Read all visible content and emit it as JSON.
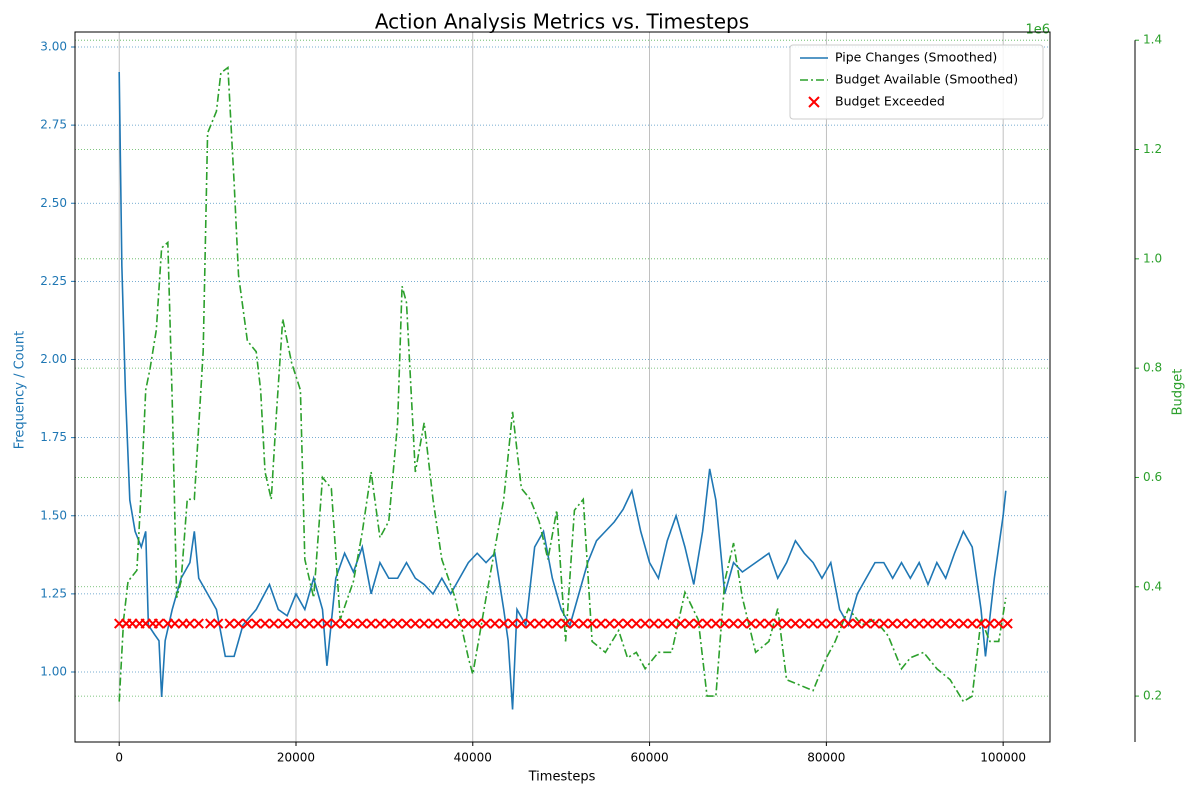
{
  "chart_data": {
    "type": "line",
    "title": "Action Analysis Metrics vs. Timesteps",
    "xlabel": "Timesteps",
    "ylabel": "Frequency / Count",
    "y2label": "Budget",
    "y2_offset_label": "1e6",
    "xlim": [
      -5000,
      105300
    ],
    "xticks": [
      0,
      20000,
      40000,
      60000,
      80000,
      100000
    ],
    "ylim": [
      0.776,
      3.048
    ],
    "yticks": [
      {
        "value": 1,
        "label": "1.00"
      },
      {
        "value": 1.25,
        "label": "1.25"
      },
      {
        "value": 1.5,
        "label": "1.50"
      },
      {
        "value": 1.75,
        "label": "1.75"
      },
      {
        "value": 2,
        "label": "2.00"
      },
      {
        "value": 2.25,
        "label": "2.25"
      },
      {
        "value": 2.5,
        "label": "2.50"
      },
      {
        "value": 2.75,
        "label": "2.75"
      },
      {
        "value": 3,
        "label": "3.00"
      }
    ],
    "y2lim": [
      0.116,
      1.415
    ],
    "y2ticks": [
      0.2,
      0.4,
      0.6,
      0.8,
      {
        "value": 1,
        "label": "1.0"
      },
      1.2,
      1.4
    ],
    "grid": true,
    "legend": "upper right",
    "series": [
      {
        "name": "Pipe Changes (Smoothed)",
        "type": "line",
        "linestyle": "solid",
        "color": "#1f77b4",
        "x": [
          0,
          300,
          700,
          1200,
          1800,
          2500,
          3000,
          3300,
          4000,
          4500,
          4800,
          5200,
          6000,
          7000,
          8000,
          8500,
          9000,
          10000,
          11000,
          12000,
          13000,
          14000,
          15500,
          17000,
          18000,
          19000,
          20000,
          21000,
          22000,
          23000,
          23500,
          24500,
          25500,
          26500,
          27500,
          28500,
          29500,
          30500,
          31500,
          32500,
          33500,
          34500,
          35500,
          36500,
          37500,
          38500,
          39500,
          40500,
          41500,
          42500,
          43500,
          44000,
          44500,
          45000,
          46000,
          47000,
          48000,
          49000,
          50000,
          51000,
          52000,
          53000,
          54000,
          55000,
          56000,
          57000,
          58000,
          59000,
          60000,
          61000,
          62000,
          63000,
          64000,
          65000,
          66000,
          66800,
          67500,
          68500,
          69500,
          70500,
          72000,
          73500,
          74500,
          75500,
          76500,
          77500,
          78500,
          79500,
          80500,
          81500,
          82500,
          83500,
          84500,
          85500,
          86500,
          87500,
          88500,
          89500,
          90500,
          91500,
          92500,
          93500,
          94500,
          95500,
          96500,
          97500,
          98000,
          99000,
          100000,
          100300
        ],
        "values": [
          2.92,
          2.3,
          1.9,
          1.55,
          1.45,
          1.4,
          1.45,
          1.15,
          1.12,
          1.1,
          0.92,
          1.1,
          1.2,
          1.3,
          1.35,
          1.45,
          1.3,
          1.25,
          1.2,
          1.05,
          1.05,
          1.15,
          1.2,
          1.28,
          1.2,
          1.18,
          1.25,
          1.2,
          1.3,
          1.2,
          1.02,
          1.3,
          1.38,
          1.32,
          1.4,
          1.25,
          1.35,
          1.3,
          1.3,
          1.35,
          1.3,
          1.28,
          1.25,
          1.3,
          1.25,
          1.3,
          1.35,
          1.38,
          1.35,
          1.38,
          1.2,
          1.1,
          0.88,
          1.2,
          1.15,
          1.4,
          1.45,
          1.3,
          1.2,
          1.15,
          1.25,
          1.35,
          1.42,
          1.45,
          1.48,
          1.52,
          1.58,
          1.45,
          1.35,
          1.3,
          1.42,
          1.5,
          1.4,
          1.28,
          1.45,
          1.65,
          1.55,
          1.25,
          1.35,
          1.32,
          1.35,
          1.38,
          1.3,
          1.35,
          1.42,
          1.38,
          1.35,
          1.3,
          1.35,
          1.2,
          1.15,
          1.25,
          1.3,
          1.35,
          1.35,
          1.3,
          1.35,
          1.3,
          1.35,
          1.28,
          1.35,
          1.3,
          1.38,
          1.45,
          1.4,
          1.2,
          1.05,
          1.3,
          1.5,
          1.58
        ]
      },
      {
        "name": "Budget Available (Smoothed)",
        "type": "line",
        "linestyle": "dashdot",
        "axis": "y2",
        "color": "#2ca02c",
        "x": [
          0,
          500,
          1000,
          2000,
          2500,
          3000,
          3500,
          4200,
          4800,
          5500,
          6000,
          6500,
          7000,
          7700,
          8500,
          9500,
          10000,
          11000,
          11500,
          12300,
          13000,
          13500,
          14500,
          15500,
          16000,
          16500,
          17200,
          17800,
          18500,
          19500,
          20500,
          21000,
          22000,
          23000,
          24000,
          25000,
          26500,
          27500,
          28500,
          29500,
          30500,
          31500,
          32000,
          32500,
          33500,
          34500,
          35500,
          36500,
          38000,
          39500,
          40000,
          41500,
          43500,
          44500,
          45500,
          46500,
          47500,
          48500,
          49500,
          50500,
          51500,
          52500,
          53500,
          55000,
          56500,
          57500,
          58500,
          59500,
          61000,
          62500,
          64000,
          65500,
          66500,
          67500,
          68500,
          69500,
          70500,
          72000,
          73500,
          74500,
          75500,
          77000,
          78500,
          80000,
          81000,
          82500,
          84000,
          85500,
          87000,
          88500,
          89500,
          91000,
          92500,
          94000,
          95500,
          96500,
          97500,
          98500,
          99500,
          100300
        ],
        "values": [
          0.19,
          0.34,
          0.41,
          0.43,
          0.58,
          0.76,
          0.8,
          0.87,
          1.02,
          1.03,
          0.74,
          0.38,
          0.41,
          0.56,
          0.56,
          0.83,
          1.23,
          1.27,
          1.34,
          1.35,
          1.14,
          0.97,
          0.85,
          0.83,
          0.76,
          0.61,
          0.56,
          0.72,
          0.89,
          0.81,
          0.76,
          0.45,
          0.38,
          0.6,
          0.58,
          0.34,
          0.41,
          0.5,
          0.61,
          0.49,
          0.52,
          0.7,
          0.95,
          0.92,
          0.61,
          0.7,
          0.56,
          0.45,
          0.38,
          0.27,
          0.24,
          0.38,
          0.56,
          0.72,
          0.58,
          0.56,
          0.52,
          0.45,
          0.54,
          0.3,
          0.54,
          0.56,
          0.3,
          0.28,
          0.32,
          0.27,
          0.28,
          0.25,
          0.28,
          0.28,
          0.39,
          0.34,
          0.2,
          0.2,
          0.41,
          0.48,
          0.38,
          0.28,
          0.3,
          0.36,
          0.23,
          0.22,
          0.21,
          0.27,
          0.3,
          0.36,
          0.33,
          0.34,
          0.31,
          0.25,
          0.27,
          0.28,
          0.25,
          0.23,
          0.19,
          0.2,
          0.34,
          0.3,
          0.3,
          0.38
        ]
      },
      {
        "name": "Budget Exceeded",
        "type": "scatter",
        "marker": "x",
        "color": "#ff0000",
        "x": [
          0,
          800,
          1500,
          2300,
          3000,
          3800,
          4500,
          5500,
          6300,
          7200,
          8000,
          9000,
          10300,
          11200,
          12500,
          13500,
          14500,
          15500,
          16500,
          17500,
          18500,
          19500,
          20500,
          21500,
          22500,
          23500,
          24500,
          25500,
          26500,
          27500,
          28500,
          29500,
          30500,
          31500,
          32500,
          33500,
          34500,
          35500,
          36500,
          37500,
          38500,
          39500,
          40500,
          41500,
          42500,
          43500,
          44500,
          45500,
          46500,
          47500,
          48500,
          49500,
          50500,
          51500,
          52500,
          53500,
          54500,
          55500,
          56500,
          57500,
          58500,
          59500,
          60500,
          61500,
          62500,
          63500,
          64500,
          65500,
          66500,
          67500,
          68500,
          69500,
          70500,
          71500,
          72500,
          73500,
          74500,
          75500,
          76500,
          77500,
          78500,
          79500,
          80500,
          81500,
          82500,
          83500,
          84500,
          85500,
          86500,
          87500,
          88500,
          89500,
          90500,
          91500,
          92500,
          93500,
          94500,
          95500,
          96500,
          97500,
          98500,
          99500,
          100500
        ],
        "values": [
          1.155,
          1.155,
          1.155,
          1.155,
          1.155,
          1.155,
          1.155,
          1.155,
          1.155,
          1.155,
          1.155,
          1.155,
          1.155,
          1.155,
          1.155,
          1.155,
          1.155,
          1.155,
          1.155,
          1.155,
          1.155,
          1.155,
          1.155,
          1.155,
          1.155,
          1.155,
          1.155,
          1.155,
          1.155,
          1.155,
          1.155,
          1.155,
          1.155,
          1.155,
          1.155,
          1.155,
          1.155,
          1.155,
          1.155,
          1.155,
          1.155,
          1.155,
          1.155,
          1.155,
          1.155,
          1.155,
          1.155,
          1.155,
          1.155,
          1.155,
          1.155,
          1.155,
          1.155,
          1.155,
          1.155,
          1.155,
          1.155,
          1.155,
          1.155,
          1.155,
          1.155,
          1.155,
          1.155,
          1.155,
          1.155,
          1.155,
          1.155,
          1.155,
          1.155,
          1.155,
          1.155,
          1.155,
          1.155,
          1.155,
          1.155,
          1.155,
          1.155,
          1.155,
          1.155,
          1.155,
          1.155,
          1.155,
          1.155,
          1.155,
          1.155,
          1.155,
          1.155,
          1.155,
          1.155,
          1.155,
          1.155,
          1.155,
          1.155,
          1.155,
          1.155,
          1.155,
          1.155,
          1.155,
          1.155,
          1.155,
          1.155,
          1.155,
          1.155
        ]
      }
    ]
  }
}
